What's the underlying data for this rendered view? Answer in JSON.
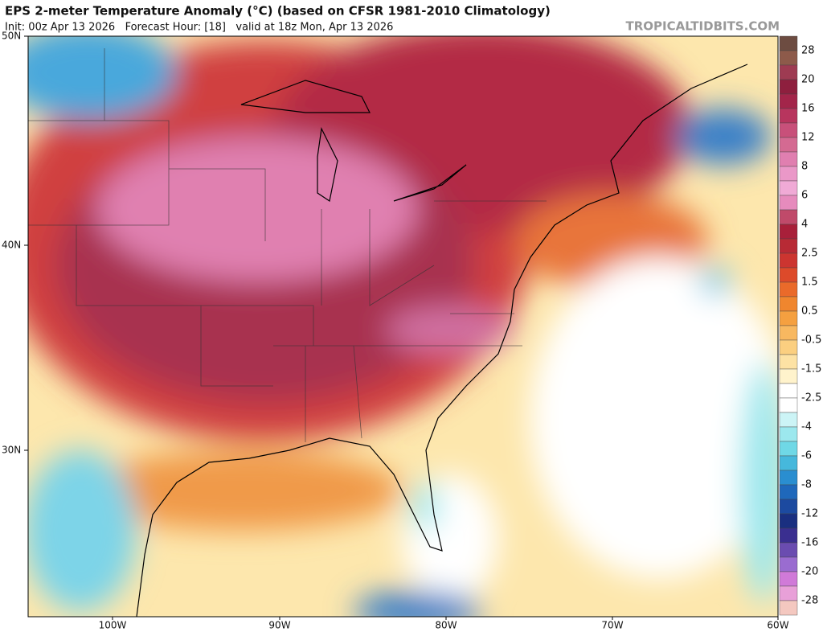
{
  "header": {
    "title": "EPS 2-meter Temperature Anomaly (°C) (based on CFSR 1981-2010 Climatology)",
    "subtitle": "Init: 00z Apr 13 2026   Forecast Hour: [18]   valid at 18z Mon, Apr 13 2026",
    "watermark": "TROPICALTIDBITS.COM"
  },
  "map": {
    "lat_labels": [
      "50N",
      "40N",
      "30N"
    ],
    "lon_labels": [
      "100W",
      "90W",
      "80W",
      "70W",
      "60W"
    ]
  },
  "colorbar": {
    "labels": [
      28,
      20,
      16,
      12,
      8,
      6,
      4,
      2.5,
      1.5,
      0.5,
      -0.5,
      -1.5,
      -2.5,
      -4,
      -6,
      -8,
      -12,
      -16,
      -20,
      -28
    ],
    "colors": [
      "#6d4c41",
      "#8d5a4a",
      "#9e3b52",
      "#8e1f3e",
      "#a3254a",
      "#b8355e",
      "#c8507a",
      "#d46a92",
      "#e07fb0",
      "#ea98c8",
      "#f0aad6",
      "#e68bbd",
      "#c04a6a",
      "#a8203a",
      "#b82a35",
      "#cc3530",
      "#dd4a2a",
      "#ea6a2a",
      "#f0862e",
      "#f5a040",
      "#f8b860",
      "#fbcf80",
      "#fde2a4",
      "#fff3cc",
      "#ffffff",
      "#ffffff",
      "#ccf4f6",
      "#9ce8ee",
      "#6fd8e6",
      "#46b8dc",
      "#2a8ed0",
      "#1f68bb",
      "#1c4aa0",
      "#1a2f80",
      "#3a2f90",
      "#6a4cb0",
      "#9a6cd0",
      "#d07ad8",
      "#e8a0d8",
      "#f4c8c0"
    ]
  }
}
